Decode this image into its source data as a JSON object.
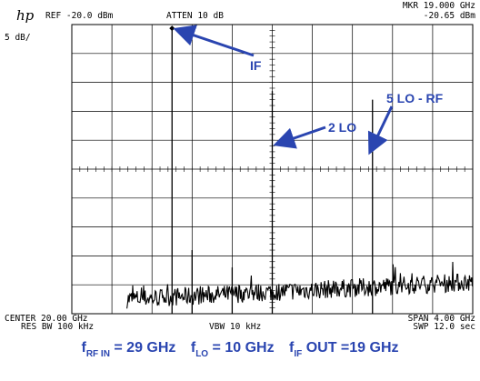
{
  "header": {
    "logo": "hp",
    "ref": "REF -20.0 dBm",
    "atten": "ATTEN 10 dB",
    "marker_freq": "MKR 19.000 GHz",
    "marker_level": "-20.65 dBm",
    "scale": "5 dB/"
  },
  "footer_readout": {
    "center": "CENTER 20.00 GHz",
    "res_bw": "RES BW 100 kHz",
    "vbw": "VBW 10 kHz",
    "span": "SPAN 4.00 GHz",
    "sweep": "SWP 12.0  sec"
  },
  "annotations": {
    "if": "IF",
    "lo2": "2 LO",
    "lo5": "5 LO - RF",
    "color": "#2a45b0"
  },
  "conditions": {
    "rf_sym": "f",
    "rf_sub": "RF IN",
    "rf_val": "= 29 GHz",
    "lo_sym": "f",
    "lo_sub": "LO",
    "lo_val": "= 10 GHz",
    "if_sym": "f",
    "if_sub": "IF",
    "if_val": "OUT =19 GHz"
  },
  "chart_data": {
    "type": "line",
    "title": "",
    "xlabel": "",
    "ylabel": "",
    "x_unit": "GHz",
    "y_unit": "dBm",
    "xlim": [
      18.0,
      22.0
    ],
    "ylim": [
      -70.0,
      -20.0
    ],
    "grid": true,
    "divisions": {
      "x": 10,
      "y": 10
    },
    "noise_floor_dbm": [
      -68.5,
      -64.5
    ],
    "peaks": [
      {
        "freq": 19.0,
        "level": -20.65
      },
      {
        "freq": 19.2,
        "level": -59.0
      },
      {
        "freq": 19.6,
        "level": -62.0
      },
      {
        "freq": 20.0,
        "level": -31.5
      },
      {
        "freq": 21.0,
        "level": -33.0
      }
    ]
  }
}
